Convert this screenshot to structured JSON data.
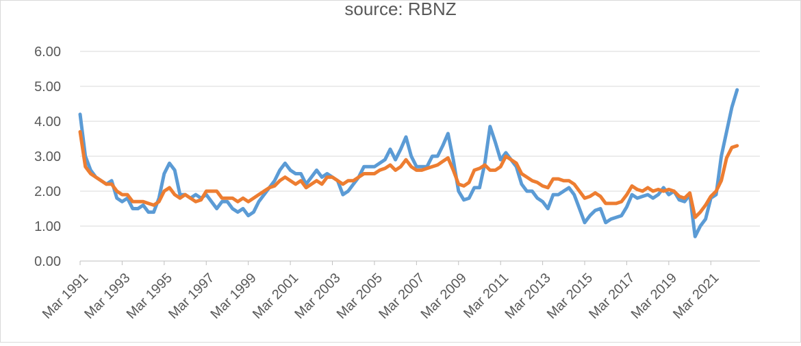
{
  "chart_data": {
    "type": "line",
    "title": "source: RBNZ",
    "xlabel": "",
    "ylabel": "",
    "ylim": [
      0,
      6
    ],
    "yticks": [
      "0.00",
      "1.00",
      "2.00",
      "3.00",
      "4.00",
      "5.00",
      "6.00"
    ],
    "xlim": [
      1991.0,
      2022.0
    ],
    "xticks": [
      {
        "label": "Mar 1991",
        "x": 1991.0
      },
      {
        "label": "Mar 1993",
        "x": 1993.0
      },
      {
        "label": "Mar 1995",
        "x": 1995.0
      },
      {
        "label": "Mar 1997",
        "x": 1997.0
      },
      {
        "label": "Mar 1999",
        "x": 1999.0
      },
      {
        "label": "Mar 2001",
        "x": 2001.0
      },
      {
        "label": "Mar 2003",
        "x": 2003.0
      },
      {
        "label": "Mar 2005",
        "x": 2005.0
      },
      {
        "label": "Mar 2007",
        "x": 2007.0
      },
      {
        "label": "Mar 2009",
        "x": 2009.0
      },
      {
        "label": "Mar 2011",
        "x": 2011.0
      },
      {
        "label": "Mar 2013",
        "x": 2013.0
      },
      {
        "label": "Mar 2015",
        "x": 2015.0
      },
      {
        "label": "Mar 2017",
        "x": 2017.0
      },
      {
        "label": "Mar 2019",
        "x": 2019.0
      },
      {
        "label": "Mar 2021",
        "x": 2021.0
      }
    ],
    "grid": true,
    "series": [
      {
        "color": "#5b9bd5",
        "points": [
          [
            1991.0,
            4.2
          ],
          [
            1991.25,
            3.0
          ],
          [
            1991.5,
            2.6
          ],
          [
            1991.75,
            2.4
          ],
          [
            1992.0,
            2.3
          ],
          [
            1992.25,
            2.2
          ],
          [
            1992.5,
            2.3
          ],
          [
            1992.75,
            1.8
          ],
          [
            1993.0,
            1.7
          ],
          [
            1993.25,
            1.8
          ],
          [
            1993.5,
            1.5
          ],
          [
            1993.75,
            1.5
          ],
          [
            1994.0,
            1.6
          ],
          [
            1994.25,
            1.4
          ],
          [
            1994.5,
            1.4
          ],
          [
            1994.75,
            1.8
          ],
          [
            1995.0,
            2.5
          ],
          [
            1995.25,
            2.8
          ],
          [
            1995.5,
            2.6
          ],
          [
            1995.75,
            1.9
          ],
          [
            1996.0,
            1.9
          ],
          [
            1996.25,
            1.8
          ],
          [
            1996.5,
            1.9
          ],
          [
            1996.75,
            1.8
          ],
          [
            1997.0,
            1.9
          ],
          [
            1997.25,
            1.7
          ],
          [
            1997.5,
            1.5
          ],
          [
            1997.75,
            1.7
          ],
          [
            1998.0,
            1.7
          ],
          [
            1998.25,
            1.5
          ],
          [
            1998.5,
            1.4
          ],
          [
            1998.75,
            1.5
          ],
          [
            1999.0,
            1.3
          ],
          [
            1999.25,
            1.4
          ],
          [
            1999.5,
            1.7
          ],
          [
            1999.75,
            1.9
          ],
          [
            2000.0,
            2.1
          ],
          [
            2000.25,
            2.3
          ],
          [
            2000.5,
            2.6
          ],
          [
            2000.75,
            2.8
          ],
          [
            2001.0,
            2.6
          ],
          [
            2001.25,
            2.5
          ],
          [
            2001.5,
            2.5
          ],
          [
            2001.75,
            2.2
          ],
          [
            2002.0,
            2.4
          ],
          [
            2002.25,
            2.6
          ],
          [
            2002.5,
            2.4
          ],
          [
            2002.75,
            2.5
          ],
          [
            2003.0,
            2.4
          ],
          [
            2003.25,
            2.3
          ],
          [
            2003.5,
            1.9
          ],
          [
            2003.75,
            2.0
          ],
          [
            2004.0,
            2.2
          ],
          [
            2004.25,
            2.4
          ],
          [
            2004.5,
            2.7
          ],
          [
            2004.75,
            2.7
          ],
          [
            2005.0,
            2.7
          ],
          [
            2005.25,
            2.8
          ],
          [
            2005.5,
            2.9
          ],
          [
            2005.75,
            3.2
          ],
          [
            2006.0,
            2.9
          ],
          [
            2006.25,
            3.2
          ],
          [
            2006.5,
            3.55
          ],
          [
            2006.75,
            3.0
          ],
          [
            2007.0,
            2.7
          ],
          [
            2007.25,
            2.7
          ],
          [
            2007.5,
            2.7
          ],
          [
            2007.75,
            3.0
          ],
          [
            2008.0,
            3.0
          ],
          [
            2008.25,
            3.3
          ],
          [
            2008.5,
            3.65
          ],
          [
            2008.75,
            2.9
          ],
          [
            2009.0,
            2.0
          ],
          [
            2009.25,
            1.75
          ],
          [
            2009.5,
            1.8
          ],
          [
            2009.75,
            2.1
          ],
          [
            2010.0,
            2.1
          ],
          [
            2010.25,
            2.8
          ],
          [
            2010.5,
            3.85
          ],
          [
            2010.75,
            3.4
          ],
          [
            2011.0,
            2.9
          ],
          [
            2011.25,
            3.1
          ],
          [
            2011.5,
            2.9
          ],
          [
            2011.75,
            2.7
          ],
          [
            2012.0,
            2.2
          ],
          [
            2012.25,
            2.0
          ],
          [
            2012.5,
            2.0
          ],
          [
            2012.75,
            1.8
          ],
          [
            2013.0,
            1.7
          ],
          [
            2013.25,
            1.5
          ],
          [
            2013.5,
            1.9
          ],
          [
            2013.75,
            1.9
          ],
          [
            2014.0,
            2.0
          ],
          [
            2014.25,
            2.1
          ],
          [
            2014.5,
            1.9
          ],
          [
            2014.75,
            1.5
          ],
          [
            2015.0,
            1.1
          ],
          [
            2015.25,
            1.3
          ],
          [
            2015.5,
            1.45
          ],
          [
            2015.75,
            1.5
          ],
          [
            2016.0,
            1.1
          ],
          [
            2016.25,
            1.2
          ],
          [
            2016.5,
            1.25
          ],
          [
            2016.75,
            1.3
          ],
          [
            2017.0,
            1.55
          ],
          [
            2017.25,
            1.9
          ],
          [
            2017.5,
            1.8
          ],
          [
            2017.75,
            1.85
          ],
          [
            2018.0,
            1.9
          ],
          [
            2018.25,
            1.8
          ],
          [
            2018.5,
            1.9
          ],
          [
            2018.75,
            2.1
          ],
          [
            2019.0,
            1.9
          ],
          [
            2019.25,
            2.0
          ],
          [
            2019.5,
            1.75
          ],
          [
            2019.75,
            1.7
          ],
          [
            2020.0,
            1.9
          ],
          [
            2020.25,
            0.7
          ],
          [
            2020.5,
            1.0
          ],
          [
            2020.75,
            1.2
          ],
          [
            2021.0,
            1.8
          ],
          [
            2021.25,
            1.9
          ],
          [
            2021.5,
            3.0
          ],
          [
            2021.75,
            3.7
          ],
          [
            2022.0,
            4.4
          ],
          [
            2022.25,
            4.9
          ]
        ]
      },
      {
        "color": "#ed7d31",
        "points": [
          [
            1991.0,
            3.7
          ],
          [
            1991.25,
            2.7
          ],
          [
            1991.5,
            2.5
          ],
          [
            1991.75,
            2.4
          ],
          [
            1992.0,
            2.3
          ],
          [
            1992.25,
            2.2
          ],
          [
            1992.5,
            2.2
          ],
          [
            1992.75,
            2.0
          ],
          [
            1993.0,
            1.9
          ],
          [
            1993.25,
            1.9
          ],
          [
            1993.5,
            1.7
          ],
          [
            1993.75,
            1.7
          ],
          [
            1994.0,
            1.7
          ],
          [
            1994.25,
            1.65
          ],
          [
            1994.5,
            1.6
          ],
          [
            1994.75,
            1.7
          ],
          [
            1995.0,
            2.0
          ],
          [
            1995.25,
            2.1
          ],
          [
            1995.5,
            1.9
          ],
          [
            1995.75,
            1.8
          ],
          [
            1996.0,
            1.9
          ],
          [
            1996.25,
            1.8
          ],
          [
            1996.5,
            1.7
          ],
          [
            1996.75,
            1.75
          ],
          [
            1997.0,
            2.0
          ],
          [
            1997.25,
            2.0
          ],
          [
            1997.5,
            2.0
          ],
          [
            1997.75,
            1.8
          ],
          [
            1998.0,
            1.8
          ],
          [
            1998.25,
            1.8
          ],
          [
            1998.5,
            1.7
          ],
          [
            1998.75,
            1.8
          ],
          [
            1999.0,
            1.7
          ],
          [
            1999.25,
            1.8
          ],
          [
            1999.5,
            1.9
          ],
          [
            1999.75,
            2.0
          ],
          [
            2000.0,
            2.1
          ],
          [
            2000.25,
            2.15
          ],
          [
            2000.5,
            2.3
          ],
          [
            2000.75,
            2.4
          ],
          [
            2001.0,
            2.3
          ],
          [
            2001.25,
            2.2
          ],
          [
            2001.5,
            2.3
          ],
          [
            2001.75,
            2.1
          ],
          [
            2002.0,
            2.2
          ],
          [
            2002.25,
            2.3
          ],
          [
            2002.5,
            2.2
          ],
          [
            2002.75,
            2.4
          ],
          [
            2003.0,
            2.4
          ],
          [
            2003.25,
            2.3
          ],
          [
            2003.5,
            2.2
          ],
          [
            2003.75,
            2.3
          ],
          [
            2004.0,
            2.3
          ],
          [
            2004.25,
            2.4
          ],
          [
            2004.5,
            2.5
          ],
          [
            2004.75,
            2.5
          ],
          [
            2005.0,
            2.5
          ],
          [
            2005.25,
            2.6
          ],
          [
            2005.5,
            2.65
          ],
          [
            2005.75,
            2.75
          ],
          [
            2006.0,
            2.6
          ],
          [
            2006.25,
            2.7
          ],
          [
            2006.5,
            2.9
          ],
          [
            2006.75,
            2.7
          ],
          [
            2007.0,
            2.6
          ],
          [
            2007.25,
            2.6
          ],
          [
            2007.5,
            2.65
          ],
          [
            2007.75,
            2.7
          ],
          [
            2008.0,
            2.75
          ],
          [
            2008.25,
            2.85
          ],
          [
            2008.5,
            2.95
          ],
          [
            2008.75,
            2.6
          ],
          [
            2009.0,
            2.2
          ],
          [
            2009.25,
            2.15
          ],
          [
            2009.5,
            2.25
          ],
          [
            2009.75,
            2.6
          ],
          [
            2010.0,
            2.65
          ],
          [
            2010.25,
            2.75
          ],
          [
            2010.5,
            2.6
          ],
          [
            2010.75,
            2.6
          ],
          [
            2011.0,
            2.7
          ],
          [
            2011.25,
            3.0
          ],
          [
            2011.5,
            2.9
          ],
          [
            2011.75,
            2.8
          ],
          [
            2012.0,
            2.5
          ],
          [
            2012.25,
            2.4
          ],
          [
            2012.5,
            2.3
          ],
          [
            2012.75,
            2.25
          ],
          [
            2013.0,
            2.15
          ],
          [
            2013.25,
            2.1
          ],
          [
            2013.5,
            2.35
          ],
          [
            2013.75,
            2.35
          ],
          [
            2014.0,
            2.3
          ],
          [
            2014.25,
            2.3
          ],
          [
            2014.5,
            2.2
          ],
          [
            2014.75,
            2.0
          ],
          [
            2015.0,
            1.8
          ],
          [
            2015.25,
            1.85
          ],
          [
            2015.5,
            1.95
          ],
          [
            2015.75,
            1.85
          ],
          [
            2016.0,
            1.65
          ],
          [
            2016.25,
            1.65
          ],
          [
            2016.5,
            1.65
          ],
          [
            2016.75,
            1.7
          ],
          [
            2017.0,
            1.9
          ],
          [
            2017.25,
            2.15
          ],
          [
            2017.5,
            2.05
          ],
          [
            2017.75,
            2.0
          ],
          [
            2018.0,
            2.1
          ],
          [
            2018.25,
            2.0
          ],
          [
            2018.5,
            2.05
          ],
          [
            2018.75,
            2.0
          ],
          [
            2019.0,
            2.05
          ],
          [
            2019.25,
            2.0
          ],
          [
            2019.5,
            1.85
          ],
          [
            2019.75,
            1.8
          ],
          [
            2020.0,
            1.95
          ],
          [
            2020.25,
            1.25
          ],
          [
            2020.5,
            1.4
          ],
          [
            2020.75,
            1.6
          ],
          [
            2021.0,
            1.85
          ],
          [
            2021.25,
            2.0
          ],
          [
            2021.5,
            2.3
          ],
          [
            2021.75,
            2.95
          ],
          [
            2022.0,
            3.25
          ],
          [
            2022.25,
            3.3
          ]
        ]
      }
    ]
  }
}
